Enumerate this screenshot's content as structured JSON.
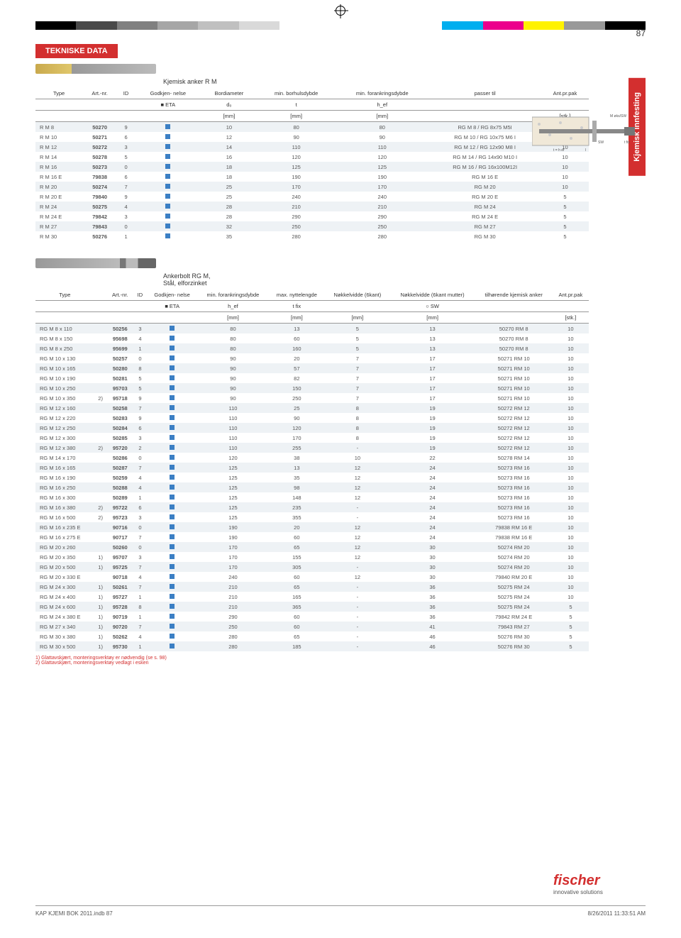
{
  "page_number": "87",
  "section_title": "TEKNISKE DATA",
  "vtab_label": "Kjemisk innfesting",
  "color_bar": [
    "#000000",
    "#4a4a4a",
    "#808080",
    "#a6a6a6",
    "#c0c0c0",
    "#d9d9d9",
    "#ffffff",
    "#ffffff",
    "#ffffff",
    "#ffffff",
    "#00aeef",
    "#ec008c",
    "#fff200",
    "#999999",
    "#000000"
  ],
  "table1": {
    "subtitle": "Kjemisk anker R M",
    "headers": {
      "type": "Type",
      "art": "Art.-nr.",
      "id": "ID",
      "godkj": "Godkjen-\nnelse",
      "bor": "Bordiameter",
      "minbor": "min.\nborhulsdybde",
      "minfor": "min.\nforankringsdybde",
      "passer": "passer til",
      "ant": "Ant.pr.pak"
    },
    "sub": {
      "eta": "■ ETA",
      "d0": "d₀",
      "t": "t",
      "hef": "h_ef"
    },
    "units": {
      "mm1": "[mm]",
      "mm2": "[mm]",
      "mm3": "[mm]",
      "stk": "[stk.]"
    },
    "rows": [
      {
        "type": "R M 8",
        "art": "50270",
        "id": "9",
        "d0": "10",
        "t": "80",
        "hef": "80",
        "passer": "RG M 8 / RG 8x75 M5I",
        "ant": "10"
      },
      {
        "type": "R M 10",
        "art": "50271",
        "id": "6",
        "d0": "12",
        "t": "90",
        "hef": "90",
        "passer": "RG M 10 / RG 10x75 M6 I",
        "ant": "10"
      },
      {
        "type": "R M 12",
        "art": "50272",
        "id": "3",
        "d0": "14",
        "t": "110",
        "hef": "110",
        "passer": "RG M 12 / RG 12x90 M8 I",
        "ant": "10"
      },
      {
        "type": "R M 14",
        "art": "50278",
        "id": "5",
        "d0": "16",
        "t": "120",
        "hef": "120",
        "passer": "RG M 14 / RG 14x90 M10 I",
        "ant": "10"
      },
      {
        "type": "R M 16",
        "art": "50273",
        "id": "0",
        "d0": "18",
        "t": "125",
        "hef": "125",
        "passer": "RG M 16 / RG 16x100M12I",
        "ant": "10"
      },
      {
        "type": "R M 16 E",
        "art": "79838",
        "id": "6",
        "d0": "18",
        "t": "190",
        "hef": "190",
        "passer": "RG M 16 E",
        "ant": "10"
      },
      {
        "type": "R M 20",
        "art": "50274",
        "id": "7",
        "d0": "25",
        "t": "170",
        "hef": "170",
        "passer": "RG M 20",
        "ant": "10"
      },
      {
        "type": "R M 20 E",
        "art": "79840",
        "id": "9",
        "d0": "25",
        "t": "240",
        "hef": "240",
        "passer": "RG M 20 E",
        "ant": "5"
      },
      {
        "type": "R M 24",
        "art": "50275",
        "id": "4",
        "d0": "28",
        "t": "210",
        "hef": "210",
        "passer": "RG M 24",
        "ant": "5"
      },
      {
        "type": "R M 24 E",
        "art": "79842",
        "id": "3",
        "d0": "28",
        "t": "290",
        "hef": "290",
        "passer": "RG M 24 E",
        "ant": "5"
      },
      {
        "type": "R M 27",
        "art": "79843",
        "id": "0",
        "d0": "32",
        "t": "250",
        "hef": "250",
        "passer": "RG M 27",
        "ant": "5"
      },
      {
        "type": "R M 30",
        "art": "50276",
        "id": "1",
        "d0": "35",
        "t": "280",
        "hef": "280",
        "passer": "RG M 30",
        "ant": "5"
      }
    ]
  },
  "table2": {
    "subtitle": "Ankerbolt RG M,\nStål, elforzinket",
    "headers": {
      "type": "Type",
      "art": "Art.-nr.",
      "id": "ID",
      "godkj": "Godkjen-\nnelse",
      "minfor": "min.\nforankringsdybde",
      "maxnyt": "max.\nnyttelengde",
      "nok6": "Nøkkelvidde\n(6kant)",
      "nok6m": "Nøkkelvidde\n(6kant mutter)",
      "tilh": "tilhørende\nkjemisk anker",
      "ant": "Ant.pr.pak"
    },
    "sub": {
      "eta": "■ ETA",
      "hef": "h_ef",
      "tfix": "t fix",
      "sw": "○ SW"
    },
    "units": {
      "mm": "[mm]",
      "stk": "[stk.]"
    },
    "rows": [
      {
        "type": "RG M 8 x 110",
        "fn": "",
        "art": "50256",
        "id": "3",
        "hef": "80",
        "tfix": "13",
        "n6": "5",
        "n6m": "13",
        "tilh": "50270 RM 8",
        "ant": "10"
      },
      {
        "type": "RG M 8 x 150",
        "fn": "",
        "art": "95698",
        "id": "4",
        "hef": "80",
        "tfix": "60",
        "n6": "5",
        "n6m": "13",
        "tilh": "50270 RM 8",
        "ant": "10"
      },
      {
        "type": "RG M 8 x 250",
        "fn": "",
        "art": "95699",
        "id": "1",
        "hef": "80",
        "tfix": "160",
        "n6": "5",
        "n6m": "13",
        "tilh": "50270 RM 8",
        "ant": "10"
      },
      {
        "type": "RG M 10 x 130",
        "fn": "",
        "art": "50257",
        "id": "0",
        "hef": "90",
        "tfix": "20",
        "n6": "7",
        "n6m": "17",
        "tilh": "50271 RM 10",
        "ant": "10"
      },
      {
        "type": "RG M 10 x 165",
        "fn": "",
        "art": "50280",
        "id": "8",
        "hef": "90",
        "tfix": "57",
        "n6": "7",
        "n6m": "17",
        "tilh": "50271 RM 10",
        "ant": "10"
      },
      {
        "type": "RG M 10 x 190",
        "fn": "",
        "art": "50281",
        "id": "5",
        "hef": "90",
        "tfix": "82",
        "n6": "7",
        "n6m": "17",
        "tilh": "50271 RM 10",
        "ant": "10"
      },
      {
        "type": "RG M 10 x 250",
        "fn": "",
        "art": "95703",
        "id": "5",
        "hef": "90",
        "tfix": "150",
        "n6": "7",
        "n6m": "17",
        "tilh": "50271 RM 10",
        "ant": "10"
      },
      {
        "type": "RG M 10 x 350",
        "fn": "2)",
        "art": "95718",
        "id": "9",
        "hef": "90",
        "tfix": "250",
        "n6": "7",
        "n6m": "17",
        "tilh": "50271 RM 10",
        "ant": "10"
      },
      {
        "type": "RG M 12 x 160",
        "fn": "",
        "art": "50258",
        "id": "7",
        "hef": "110",
        "tfix": "25",
        "n6": "8",
        "n6m": "19",
        "tilh": "50272 RM 12",
        "ant": "10"
      },
      {
        "type": "RG M 12 x 220",
        "fn": "",
        "art": "50283",
        "id": "9",
        "hef": "110",
        "tfix": "90",
        "n6": "8",
        "n6m": "19",
        "tilh": "50272 RM 12",
        "ant": "10"
      },
      {
        "type": "RG M 12 x 250",
        "fn": "",
        "art": "50284",
        "id": "6",
        "hef": "110",
        "tfix": "120",
        "n6": "8",
        "n6m": "19",
        "tilh": "50272 RM 12",
        "ant": "10"
      },
      {
        "type": "RG M 12 x 300",
        "fn": "",
        "art": "50285",
        "id": "3",
        "hef": "110",
        "tfix": "170",
        "n6": "8",
        "n6m": "19",
        "tilh": "50272 RM 12",
        "ant": "10"
      },
      {
        "type": "RG M 12 x 380",
        "fn": "2)",
        "art": "95720",
        "id": "2",
        "hef": "110",
        "tfix": "255",
        "n6": "-",
        "n6m": "19",
        "tilh": "50272 RM 12",
        "ant": "10"
      },
      {
        "type": "RG M 14 x 170",
        "fn": "",
        "art": "50286",
        "id": "0",
        "hef": "120",
        "tfix": "38",
        "n6": "10",
        "n6m": "22",
        "tilh": "50278 RM 14",
        "ant": "10"
      },
      {
        "type": "RG M 16 x 165",
        "fn": "",
        "art": "50287",
        "id": "7",
        "hef": "125",
        "tfix": "13",
        "n6": "12",
        "n6m": "24",
        "tilh": "50273 RM 16",
        "ant": "10"
      },
      {
        "type": "RG M 16 x 190",
        "fn": "",
        "art": "50259",
        "id": "4",
        "hef": "125",
        "tfix": "35",
        "n6": "12",
        "n6m": "24",
        "tilh": "50273 RM 16",
        "ant": "10"
      },
      {
        "type": "RG M 16 x 250",
        "fn": "",
        "art": "50288",
        "id": "4",
        "hef": "125",
        "tfix": "98",
        "n6": "12",
        "n6m": "24",
        "tilh": "50273 RM 16",
        "ant": "10"
      },
      {
        "type": "RG M 16 x 300",
        "fn": "",
        "art": "50289",
        "id": "1",
        "hef": "125",
        "tfix": "148",
        "n6": "12",
        "n6m": "24",
        "tilh": "50273 RM 16",
        "ant": "10"
      },
      {
        "type": "RG M 16 x 380",
        "fn": "2)",
        "art": "95722",
        "id": "6",
        "hef": "125",
        "tfix": "235",
        "n6": "-",
        "n6m": "24",
        "tilh": "50273 RM 16",
        "ant": "10"
      },
      {
        "type": "RG M 16 x 500",
        "fn": "2)",
        "art": "95723",
        "id": "3",
        "hef": "125",
        "tfix": "355",
        "n6": "-",
        "n6m": "24",
        "tilh": "50273 RM 16",
        "ant": "10"
      },
      {
        "type": "RG M 16 x 235 E",
        "fn": "",
        "art": "90716",
        "id": "0",
        "hef": "190",
        "tfix": "20",
        "n6": "12",
        "n6m": "24",
        "tilh": "79838 RM 16 E",
        "ant": "10"
      },
      {
        "type": "RG M 16 x 275 E",
        "fn": "",
        "art": "90717",
        "id": "7",
        "hef": "190",
        "tfix": "60",
        "n6": "12",
        "n6m": "24",
        "tilh": "79838 RM 16 E",
        "ant": "10"
      },
      {
        "type": "RG M 20 x 260",
        "fn": "",
        "art": "50260",
        "id": "0",
        "hef": "170",
        "tfix": "65",
        "n6": "12",
        "n6m": "30",
        "tilh": "50274 RM 20",
        "ant": "10"
      },
      {
        "type": "RG M 20 x 350",
        "fn": "1)",
        "art": "95707",
        "id": "3",
        "hef": "170",
        "tfix": "155",
        "n6": "12",
        "n6m": "30",
        "tilh": "50274 RM 20",
        "ant": "10"
      },
      {
        "type": "RG M 20 x 500",
        "fn": "1)",
        "art": "95725",
        "id": "7",
        "hef": "170",
        "tfix": "305",
        "n6": "-",
        "n6m": "30",
        "tilh": "50274 RM 20",
        "ant": "10"
      },
      {
        "type": "RG M 20 x 330 E",
        "fn": "",
        "art": "90718",
        "id": "4",
        "hef": "240",
        "tfix": "60",
        "n6": "12",
        "n6m": "30",
        "tilh": "79840 RM 20 E",
        "ant": "10"
      },
      {
        "type": "RG M 24 x 300",
        "fn": "1)",
        "art": "50261",
        "id": "7",
        "hef": "210",
        "tfix": "65",
        "n6": "-",
        "n6m": "36",
        "tilh": "50275 RM 24",
        "ant": "10"
      },
      {
        "type": "RG M 24 x 400",
        "fn": "1)",
        "art": "95727",
        "id": "1",
        "hef": "210",
        "tfix": "165",
        "n6": "-",
        "n6m": "36",
        "tilh": "50275 RM 24",
        "ant": "10"
      },
      {
        "type": "RG M 24 x 600",
        "fn": "1)",
        "art": "95728",
        "id": "8",
        "hef": "210",
        "tfix": "365",
        "n6": "-",
        "n6m": "36",
        "tilh": "50275 RM 24",
        "ant": "5"
      },
      {
        "type": "RG M 24 x 380 E",
        "fn": "1)",
        "art": "90719",
        "id": "1",
        "hef": "290",
        "tfix": "60",
        "n6": "-",
        "n6m": "36",
        "tilh": "79842 RM 24 E",
        "ant": "5"
      },
      {
        "type": "RG M 27 x 340",
        "fn": "1)",
        "art": "90720",
        "id": "7",
        "hef": "250",
        "tfix": "60",
        "n6": "-",
        "n6m": "41",
        "tilh": "79843 RM 27",
        "ant": "5"
      },
      {
        "type": "RG M 30 x 380",
        "fn": "1)",
        "art": "50262",
        "id": "4",
        "hef": "280",
        "tfix": "65",
        "n6": "-",
        "n6m": "46",
        "tilh": "50276 RM 30",
        "ant": "5"
      },
      {
        "type": "RG M 30 x 500",
        "fn": "1)",
        "art": "95730",
        "id": "1",
        "hef": "280",
        "tfix": "185",
        "n6": "-",
        "n6m": "46",
        "tilh": "50276 RM 30",
        "ant": "5"
      }
    ]
  },
  "notes": {
    "n1": "1) Glattavskjært, monteringsverktøy er nødvendig (se s. 98)",
    "n2": "2) Glattavskjært, monteringsverktøy vedlagt i esken"
  },
  "logo": {
    "brand": "fischer",
    "tag": "innovative solutions"
  },
  "footer": {
    "left": "KAP KJEMI  BOK 2011.indb   87",
    "right": "8/26/2011   11:33:51 AM"
  }
}
